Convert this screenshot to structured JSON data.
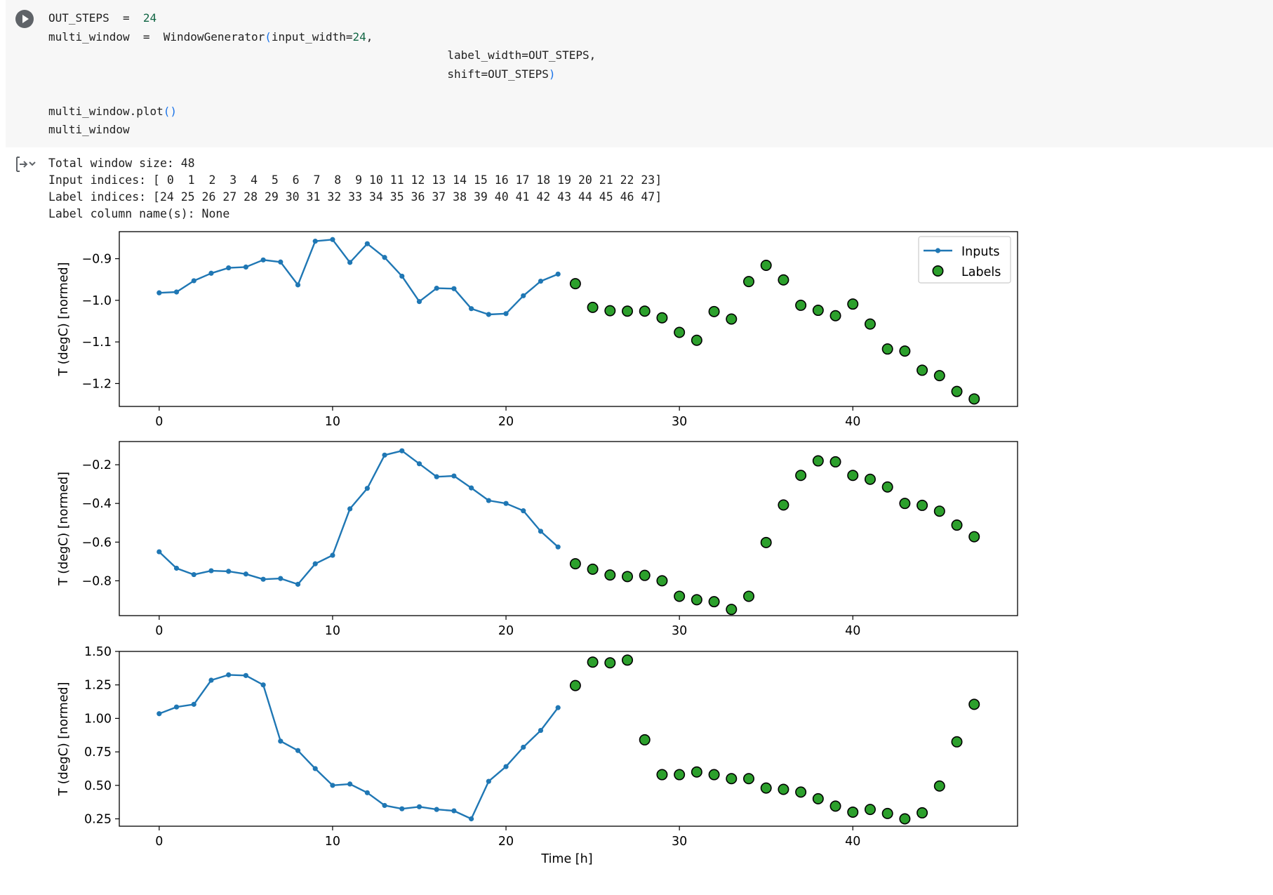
{
  "code_cell": {
    "run_button_icon": "play-icon",
    "lines": [
      [
        "OUT_STEPS",
        " = ",
        "24",
        ""
      ],
      [
        "multi_window",
        " = ",
        "WindowGenerator",
        "(input_width=",
        "24",
        ","
      ],
      [
        "",
        "label_width=OUT_STEPS,"
      ],
      [
        "",
        "shift=OUT_STEPS",
        ")"
      ],
      [
        "multi_window.plot",
        "()"
      ],
      [
        "multi_window"
      ]
    ],
    "line1_var": "OUT_STEPS",
    "line1_op": "=",
    "line1_val": "24",
    "line2_var": "multi_window",
    "line2_op": "=",
    "line2_func": "WindowGenerator",
    "line2_arg": "input_width=",
    "line2_argval": "24",
    "line3_arg": "label_width=OUT_STEPS,",
    "line4_arg": "shift=OUT_STEPS",
    "line5_call": "multi_window.plot",
    "line6": "multi_window"
  },
  "output": {
    "toggle_icon": "output-collapse-icon",
    "lines": [
      "Total window size: 48",
      "Input indices: [ 0  1  2  3  4  5  6  7  8  9 10 11 12 13 14 15 16 17 18 19 20 21 22 23]",
      "Label indices: [24 25 26 27 28 29 30 31 32 33 34 35 36 37 38 39 40 41 42 43 44 45 46 47]",
      "Label column name(s): None"
    ]
  },
  "colors": {
    "inputs_line": "#1f77b4",
    "labels_fill": "#2ca02c",
    "labels_edge": "#000000"
  },
  "chart_data": [
    {
      "type": "line",
      "ylabel": "T (degC) [normed]",
      "xlabel": "",
      "xlim": [
        -2.3,
        49.5
      ],
      "ylim": [
        -1.255,
        -0.835
      ],
      "xticks": [
        0,
        10,
        20,
        30,
        40
      ],
      "yticks": [
        -0.9,
        -1.0,
        -1.1,
        -1.2
      ],
      "ytick_labels": [
        "−0.9",
        "−1.0",
        "−1.1",
        "−1.2"
      ],
      "legend": {
        "placement": "top-right",
        "entries": [
          "Inputs",
          "Labels"
        ]
      },
      "series": [
        {
          "name": "Inputs",
          "x": [
            0,
            1,
            2,
            3,
            4,
            5,
            6,
            7,
            8,
            9,
            10,
            11,
            12,
            13,
            14,
            15,
            16,
            17,
            18,
            19,
            20,
            21,
            22,
            23
          ],
          "y": [
            -0.982,
            -0.98,
            -0.953,
            -0.935,
            -0.922,
            -0.92,
            -0.903,
            -0.908,
            -0.963,
            -0.858,
            -0.854,
            -0.909,
            -0.864,
            -0.897,
            -0.942,
            -1.003,
            -0.971,
            -0.972,
            -1.02,
            -1.034,
            -1.032,
            -0.989,
            -0.954,
            -0.937
          ]
        },
        {
          "name": "Labels",
          "x": [
            24,
            25,
            26,
            27,
            28,
            29,
            30,
            31,
            32,
            33,
            34,
            35,
            36,
            37,
            38,
            39,
            40,
            41,
            42,
            43,
            44,
            45,
            46,
            47
          ],
          "y": [
            -0.96,
            -1.017,
            -1.025,
            -1.026,
            -1.026,
            -1.042,
            -1.077,
            -1.096,
            -1.027,
            -1.045,
            -0.955,
            -0.916,
            -0.951,
            -1.012,
            -1.024,
            -1.037,
            -1.009,
            -1.057,
            -1.117,
            -1.122,
            -1.168,
            -1.181,
            -1.219,
            -1.237
          ]
        }
      ]
    },
    {
      "type": "line",
      "ylabel": "T (degC) [normed]",
      "xlabel": "",
      "xlim": [
        -2.3,
        49.5
      ],
      "ylim": [
        -0.98,
        -0.08
      ],
      "xticks": [
        0,
        10,
        20,
        30,
        40
      ],
      "yticks": [
        -0.2,
        -0.4,
        -0.6,
        -0.8
      ],
      "ytick_labels": [
        "−0.2",
        "−0.4",
        "−0.6",
        "−0.8"
      ],
      "series": [
        {
          "name": "Inputs",
          "x": [
            0,
            1,
            2,
            3,
            4,
            5,
            6,
            7,
            8,
            9,
            10,
            11,
            12,
            13,
            14,
            15,
            16,
            17,
            18,
            19,
            20,
            21,
            22,
            23
          ],
          "y": [
            -0.65,
            -0.735,
            -0.768,
            -0.748,
            -0.751,
            -0.765,
            -0.792,
            -0.788,
            -0.818,
            -0.712,
            -0.668,
            -0.428,
            -0.322,
            -0.15,
            -0.128,
            -0.195,
            -0.262,
            -0.258,
            -0.32,
            -0.385,
            -0.4,
            -0.438,
            -0.544,
            -0.625
          ]
        },
        {
          "name": "Labels",
          "x": [
            24,
            25,
            26,
            27,
            28,
            29,
            30,
            31,
            32,
            33,
            34,
            35,
            36,
            37,
            38,
            39,
            40,
            41,
            42,
            43,
            44,
            45,
            46,
            47
          ],
          "y": [
            -0.712,
            -0.74,
            -0.77,
            -0.778,
            -0.772,
            -0.8,
            -0.88,
            -0.898,
            -0.908,
            -0.948,
            -0.88,
            -0.602,
            -0.408,
            -0.255,
            -0.18,
            -0.185,
            -0.255,
            -0.275,
            -0.315,
            -0.4,
            -0.41,
            -0.44,
            -0.512,
            -0.572
          ]
        }
      ]
    },
    {
      "type": "line",
      "ylabel": "T (degC) [normed]",
      "xlabel": "Time [h]",
      "xlim": [
        -2.3,
        49.5
      ],
      "ylim": [
        0.195,
        1.5
      ],
      "xticks": [
        0,
        10,
        20,
        30,
        40
      ],
      "yticks": [
        1.5,
        1.25,
        1.0,
        0.75,
        0.5,
        0.25
      ],
      "ytick_labels": [
        "1.50",
        "1.25",
        "1.00",
        "0.75",
        "0.50",
        "0.25"
      ],
      "series": [
        {
          "name": "Inputs",
          "x": [
            0,
            1,
            2,
            3,
            4,
            5,
            6,
            7,
            8,
            9,
            10,
            11,
            12,
            13,
            14,
            15,
            16,
            17,
            18,
            19,
            20,
            21,
            22,
            23
          ],
          "y": [
            1.035,
            1.085,
            1.105,
            1.285,
            1.325,
            1.32,
            1.25,
            0.83,
            0.76,
            0.625,
            0.5,
            0.51,
            0.445,
            0.35,
            0.325,
            0.34,
            0.32,
            0.31,
            0.25,
            0.53,
            0.64,
            0.785,
            0.91,
            1.08
          ]
        },
        {
          "name": "Labels",
          "x": [
            24,
            25,
            26,
            27,
            28,
            29,
            30,
            31,
            32,
            33,
            34,
            35,
            36,
            37,
            38,
            39,
            40,
            41,
            42,
            43,
            44,
            45,
            46,
            47
          ],
          "y": [
            1.245,
            1.42,
            1.415,
            1.435,
            0.84,
            0.58,
            0.58,
            0.6,
            0.58,
            0.55,
            0.55,
            0.48,
            0.47,
            0.45,
            0.4,
            0.345,
            0.3,
            0.32,
            0.29,
            0.25,
            0.295,
            0.495,
            0.825,
            1.105
          ]
        }
      ]
    }
  ]
}
